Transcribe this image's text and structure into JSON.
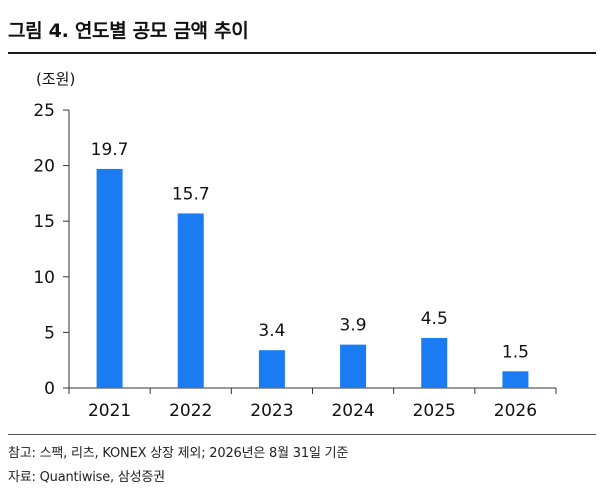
{
  "header": {
    "title": "그림 4. 연도별 공모 금액 추이"
  },
  "chart_data": {
    "type": "bar",
    "unit_label": "(조원)",
    "categories": [
      "2021",
      "2022",
      "2023",
      "2024",
      "2025",
      "2026"
    ],
    "values": [
      19.7,
      15.7,
      3.4,
      3.9,
      4.5,
      1.5
    ],
    "value_labels": [
      "19.7",
      "15.7",
      "3.4",
      "3.9",
      "4.5",
      "1.5"
    ],
    "ylim": [
      0,
      25
    ],
    "yticks": [
      "0",
      "5",
      "10",
      "15",
      "20",
      "25"
    ],
    "bar_color": "#1a7bf2",
    "grid": false,
    "legend": "none"
  },
  "footer": {
    "note": "참고: 스팩, 리츠, KONEX 상장 제외; 2026년은 8월 31일 기준",
    "source": "자료: Quantiwise, 삼성증권"
  }
}
